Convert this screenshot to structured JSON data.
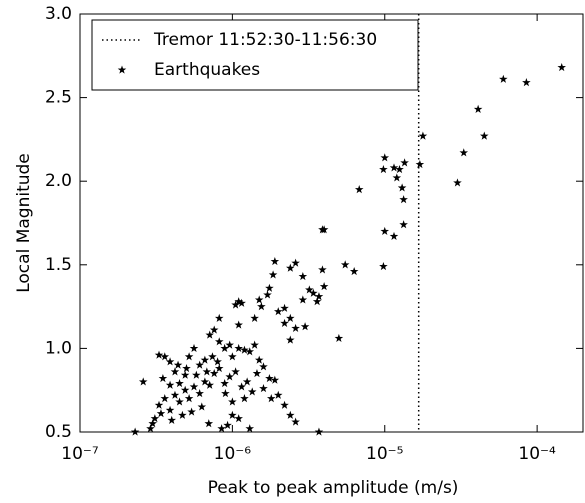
{
  "chart_data": {
    "type": "scatter",
    "xlabel": "Peak to peak amplitude (m/s)",
    "ylabel": "Local Magnitude",
    "xscale": "log",
    "xlim": [
      1e-07,
      0.0002
    ],
    "ylim": [
      0.5,
      3.0
    ],
    "xticks": [
      {
        "value": 1e-07,
        "label": "10⁻⁷"
      },
      {
        "value": 1e-06,
        "label": "10⁻⁶"
      },
      {
        "value": 1e-05,
        "label": "10⁻⁵"
      },
      {
        "value": 0.0001,
        "label": "10⁻⁴"
      }
    ],
    "yticks": [
      0.5,
      {
        "value": 1,
        "label": "1.0"
      },
      1.5,
      {
        "value": 2,
        "label": "2.0"
      },
      2.5,
      {
        "value": 3,
        "label": "3.0"
      }
    ],
    "legend": "upper left",
    "series": [
      {
        "name": "Tremor 11:52:30-11:56:30",
        "style": "dotted-vline",
        "color": "#000000",
        "x": [
          1.67e-05
        ]
      },
      {
        "name": "Earthquakes",
        "style": "star",
        "color": "#000000",
        "x": [
          0.000145,
          6e-05,
          8.5e-05,
          4.1e-05,
          4.5e-05,
          3.3e-05,
          3e-05,
          1.78e-05,
          1.7e-05,
          1.25e-05,
          1.35e-05,
          9.8e-06,
          1e-05,
          1.15e-05,
          1.2e-05,
          1.3e-05,
          6.8e-06,
          1.33e-05,
          1.33e-05,
          1.15e-05,
          1e-05,
          9.8e-06,
          6.3e-06,
          5.5e-06,
          3.9e-06,
          4e-06,
          3.9e-06,
          4e-06,
          3.6e-06,
          3.2e-06,
          2.9e-06,
          2.6e-06,
          2.4e-06,
          1.9e-06,
          1.75e-06,
          1.85e-06,
          1.5e-06,
          1.15e-06,
          1.05e-06,
          1.1e-06,
          8.2e-07,
          1.1e-06,
          1.4e-06,
          1.55e-06,
          2.2e-06,
          2.4e-06,
          2.6e-06,
          2.9e-06,
          3e-06,
          2.2e-06,
          5e-06,
          2.4e-06,
          3.4e-06,
          3.7e-06,
          1.7e-06,
          2e-06,
          2.6e-07,
          3.3e-07,
          3.6e-07,
          3.9e-07,
          4.2e-07,
          3.5e-07,
          3.9e-07,
          4.5e-07,
          4.9e-07,
          5.2e-07,
          5.6e-07,
          6.1e-07,
          6.6e-07,
          7.1e-07,
          7.6e-07,
          8.2e-07,
          8.9e-07,
          9.6e-07,
          1e-06,
          1.1e-06,
          1.2e-06,
          1.3e-06,
          1.4e-06,
          1.5e-06,
          1.6e-06,
          1.75e-06,
          1.9e-06,
          2e-06,
          2.2e-06,
          2.4e-06,
          2.6e-06,
          3.7e-06,
          3.3e-07,
          3.6e-07,
          3.9e-07,
          4.2e-07,
          4.5e-07,
          4.9e-07,
          5.2e-07,
          5.6e-07,
          6.1e-07,
          6.6e-07,
          7.1e-07,
          7.6e-07,
          8.2e-07,
          8.9e-07,
          9.6e-07,
          1.05e-06,
          1.15e-06,
          1.25e-06,
          1.35e-06,
          1.45e-06,
          3e-07,
          3.1e-07,
          3.4e-07,
          4e-07,
          4.7e-07,
          5.4e-07,
          6.3e-07,
          2.9e-07,
          7e-07,
          8.5e-07,
          9.3e-07,
          1.1e-06,
          1.3e-06,
          1.2e-06,
          4.4e-07,
          5e-07,
          5.8e-07,
          6.8e-07,
          7.4e-07,
          8e-07,
          9e-07,
          1e-06,
          1.6e-06,
          1.8e-06,
          1e-06,
          2.3e-07
        ],
        "values": [
          2.68,
          2.61,
          2.59,
          2.43,
          2.27,
          2.17,
          1.99,
          2.27,
          2.1,
          2.07,
          2.11,
          2.07,
          2.14,
          2.08,
          2.02,
          1.96,
          1.95,
          1.89,
          1.74,
          1.67,
          1.7,
          1.49,
          1.46,
          1.5,
          1.71,
          1.71,
          1.47,
          1.37,
          1.28,
          1.35,
          1.43,
          1.51,
          1.48,
          1.52,
          1.36,
          1.44,
          1.29,
          1.27,
          1.26,
          1.28,
          1.18,
          1.14,
          1.18,
          1.25,
          1.15,
          1.18,
          1.12,
          1.29,
          1.13,
          1.24,
          1.06,
          1.05,
          1.33,
          1.31,
          1.32,
          1.22,
          0.8,
          0.96,
          0.95,
          0.92,
          0.86,
          0.82,
          0.78,
          0.79,
          0.84,
          0.95,
          1.0,
          0.9,
          0.93,
          1.08,
          1.11,
          1.04,
          1.0,
          1.02,
          0.95,
          1.0,
          0.99,
          0.98,
          1.02,
          0.93,
          0.89,
          0.82,
          0.81,
          0.72,
          0.66,
          0.6,
          0.56,
          0.5,
          0.66,
          0.7,
          0.63,
          0.72,
          0.68,
          0.75,
          0.7,
          0.77,
          0.73,
          0.8,
          0.78,
          0.85,
          0.88,
          0.79,
          0.83,
          0.86,
          0.77,
          0.8,
          0.74,
          0.85,
          0.55,
          0.58,
          0.61,
          0.57,
          0.6,
          0.62,
          0.65,
          0.52,
          0.55,
          0.52,
          0.54,
          0.58,
          0.52,
          0.7,
          0.9,
          0.88,
          0.84,
          0.86,
          0.95,
          0.92,
          0.73,
          0.68,
          0.76,
          0.7,
          0.6,
          0.5
        ]
      }
    ]
  }
}
